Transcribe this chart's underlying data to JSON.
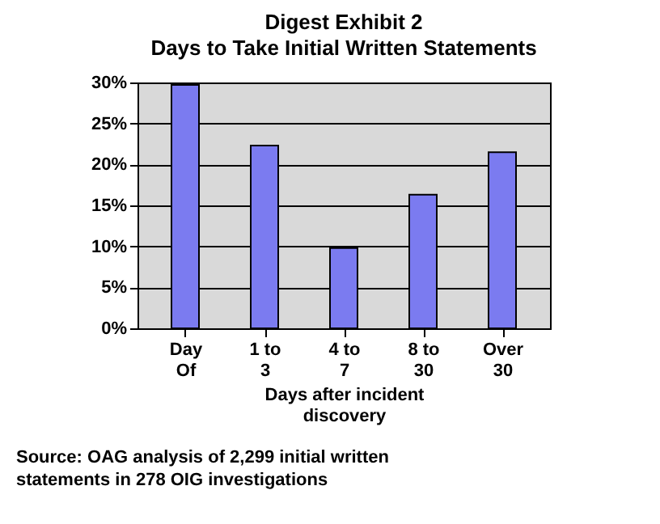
{
  "chart_data": {
    "type": "bar",
    "title": "Digest Exhibit 2",
    "subtitle": "Days to Take Initial Written Statements",
    "categories": [
      "Day Of",
      "1 to 3",
      "4 to 7",
      "8 to 30",
      "Over 30"
    ],
    "values": [
      29.7,
      22.3,
      9.8,
      16.3,
      21.5
    ],
    "color": "#7b7bf0",
    "xlabel": "Days after incident discovery",
    "ylim": [
      0,
      30
    ],
    "yticks": [
      {
        "value": 0,
        "label": "0%"
      },
      {
        "value": 5,
        "label": "5%"
      },
      {
        "value": 10,
        "label": "10%"
      },
      {
        "value": 15,
        "label": "15%"
      },
      {
        "value": 20,
        "label": "20%"
      },
      {
        "value": 25,
        "label": "25%"
      },
      {
        "value": 30,
        "label": "30%"
      }
    ],
    "grid": "y",
    "annotations": [
      "Source: OAG analysis of 2,299 initial written statements in 278 OIG investigations"
    ]
  }
}
